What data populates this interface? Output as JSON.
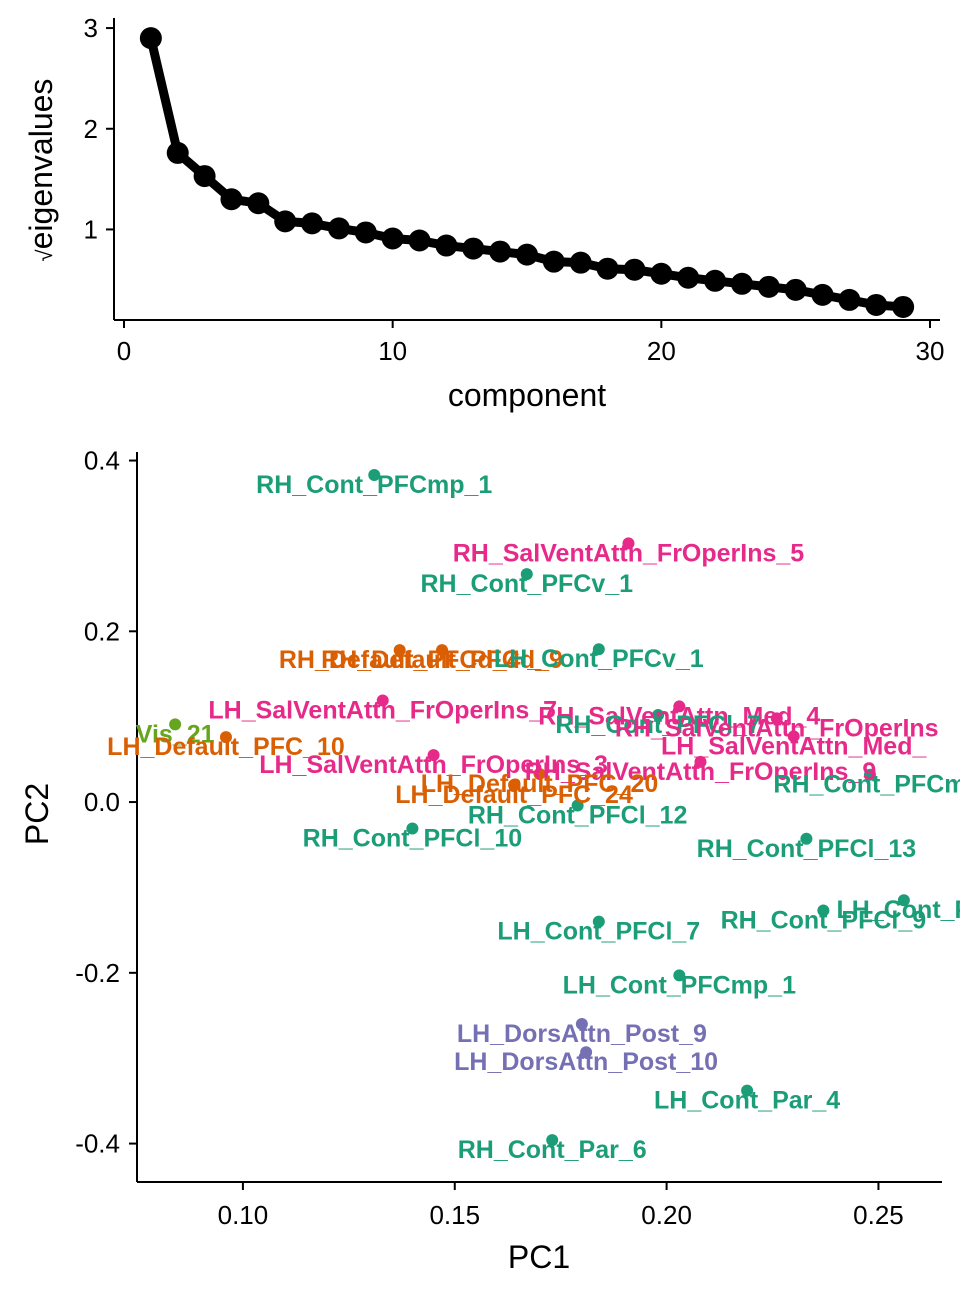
{
  "chart_data": [
    {
      "type": "line",
      "xlabel": "component",
      "ylabel": "eigenvalues",
      "ylabel_prefix": "√",
      "xlim": [
        0,
        30
      ],
      "ylim": [
        0.18,
        3.1
      ],
      "xticks": [
        0,
        10,
        20,
        30
      ],
      "yticks": [
        1,
        2,
        3
      ],
      "x": [
        1,
        2,
        3,
        4,
        5,
        6,
        7,
        8,
        9,
        10,
        11,
        12,
        13,
        14,
        15,
        16,
        17,
        18,
        19,
        20,
        21,
        22,
        23,
        24,
        25,
        26,
        27,
        28,
        29
      ],
      "values": [
        2.9,
        1.76,
        1.53,
        1.3,
        1.26,
        1.08,
        1.06,
        1.01,
        0.97,
        0.91,
        0.89,
        0.84,
        0.81,
        0.78,
        0.75,
        0.68,
        0.67,
        0.61,
        0.6,
        0.56,
        0.52,
        0.49,
        0.46,
        0.43,
        0.4,
        0.35,
        0.3,
        0.25,
        0.23
      ],
      "color": "#000000"
    },
    {
      "type": "scatter",
      "xlabel": "PC1",
      "ylabel": "PC2",
      "xlim": [
        0.075,
        0.265
      ],
      "ylim": [
        -0.445,
        0.41
      ],
      "xticks": [
        0.1,
        0.15,
        0.2,
        0.25
      ],
      "xtick_labels": [
        "0.10",
        "0.15",
        "0.20",
        "0.25"
      ],
      "yticks": [
        0.4,
        0.2,
        0.0,
        -0.2,
        -0.4
      ],
      "ytick_labels": [
        "0.4",
        "0.2",
        "0.0",
        "-0.2",
        "-0.4"
      ],
      "colors": {
        "Cont": "#1b9e77",
        "SalVentAttn": "#e7298a",
        "Default": "#d95f02",
        "Vis": "#66a61e",
        "DorsAttn": "#7570b3"
      },
      "points": [
        {
          "label": "RH_Cont_PFCmp_1",
          "x": 0.131,
          "y": 0.383,
          "group": "Cont"
        },
        {
          "label": "RH_SalVentAttn_FrOperIns_5",
          "x": 0.191,
          "y": 0.303,
          "group": "SalVentAttn"
        },
        {
          "label": "RH_Cont_PFCv_1",
          "x": 0.167,
          "y": 0.267,
          "group": "Cont"
        },
        {
          "label": "RH_Default_PFCd_4",
          "x": 0.137,
          "y": 0.178,
          "group": "Default"
        },
        {
          "label": "RH_Default_PFCd_9",
          "x": 0.147,
          "y": 0.178,
          "group": "Default"
        },
        {
          "label": "LH_Cont_PFCv_1",
          "x": 0.184,
          "y": 0.179,
          "group": "Cont"
        },
        {
          "label": "LH_SalVentAttn_FrOperIns_7",
          "x": 0.133,
          "y": 0.119,
          "group": "SalVentAttn"
        },
        {
          "label": "RH_SalVentAttn_Med_4",
          "x": 0.203,
          "y": 0.112,
          "group": "SalVentAttn"
        },
        {
          "label": "RH_Cont_PFCl_7",
          "x": 0.198,
          "y": 0.102,
          "group": "Cont"
        },
        {
          "label": "RH_SalVentAttn_FrOperIns",
          "x": 0.226,
          "y": 0.098,
          "group": "SalVentAttn"
        },
        {
          "label": "LH_SalVentAttn_Med_",
          "x": 0.23,
          "y": 0.077,
          "group": "SalVentAttn"
        },
        {
          "label": "Vis_21",
          "x": 0.084,
          "y": 0.091,
          "group": "Vis"
        },
        {
          "label": "LH_Default_PFC_10",
          "x": 0.096,
          "y": 0.076,
          "group": "Default"
        },
        {
          "label": "LH_SalVentAttn_FrOperIns_3",
          "x": 0.145,
          "y": 0.055,
          "group": "SalVentAttn"
        },
        {
          "label": "RH_SalVentAttn_FrOperIns_9",
          "x": 0.208,
          "y": 0.047,
          "group": "SalVentAttn"
        },
        {
          "label": "LH_Default_PFC_20",
          "x": 0.17,
          "y": 0.033,
          "group": "Default"
        },
        {
          "label": "LH_Default_PFC_24",
          "x": 0.164,
          "y": 0.02,
          "group": "Default"
        },
        {
          "label": "RH_Cont_PFCm",
          "x": 0.248,
          "y": 0.032,
          "group": "Cont"
        },
        {
          "label": "RH_Cont_PFCl_12",
          "x": 0.179,
          "y": -0.004,
          "group": "Cont"
        },
        {
          "label": "RH_Cont_PFCl_10",
          "x": 0.14,
          "y": -0.031,
          "group": "Cont"
        },
        {
          "label": "RH_Cont_PFCl_13",
          "x": 0.233,
          "y": -0.043,
          "group": "Cont"
        },
        {
          "label": "LH_Cont_P",
          "x": 0.256,
          "y": -0.115,
          "group": "Cont"
        },
        {
          "label": "RH_Cont_PFCl_9",
          "x": 0.237,
          "y": -0.127,
          "group": "Cont"
        },
        {
          "label": "LH_Cont_PFCl_7",
          "x": 0.184,
          "y": -0.14,
          "group": "Cont"
        },
        {
          "label": "LH_Cont_PFCmp_1",
          "x": 0.203,
          "y": -0.203,
          "group": "Cont"
        },
        {
          "label": "LH_DorsAttn_Post_9",
          "x": 0.18,
          "y": -0.26,
          "group": "DorsAttn"
        },
        {
          "label": "LH_DorsAttn_Post_10",
          "x": 0.181,
          "y": -0.293,
          "group": "DorsAttn"
        },
        {
          "label": "LH_Cont_Par_4",
          "x": 0.219,
          "y": -0.338,
          "group": "Cont"
        },
        {
          "label": "RH_Cont_Par_6",
          "x": 0.173,
          "y": -0.396,
          "group": "Cont"
        }
      ]
    }
  ]
}
